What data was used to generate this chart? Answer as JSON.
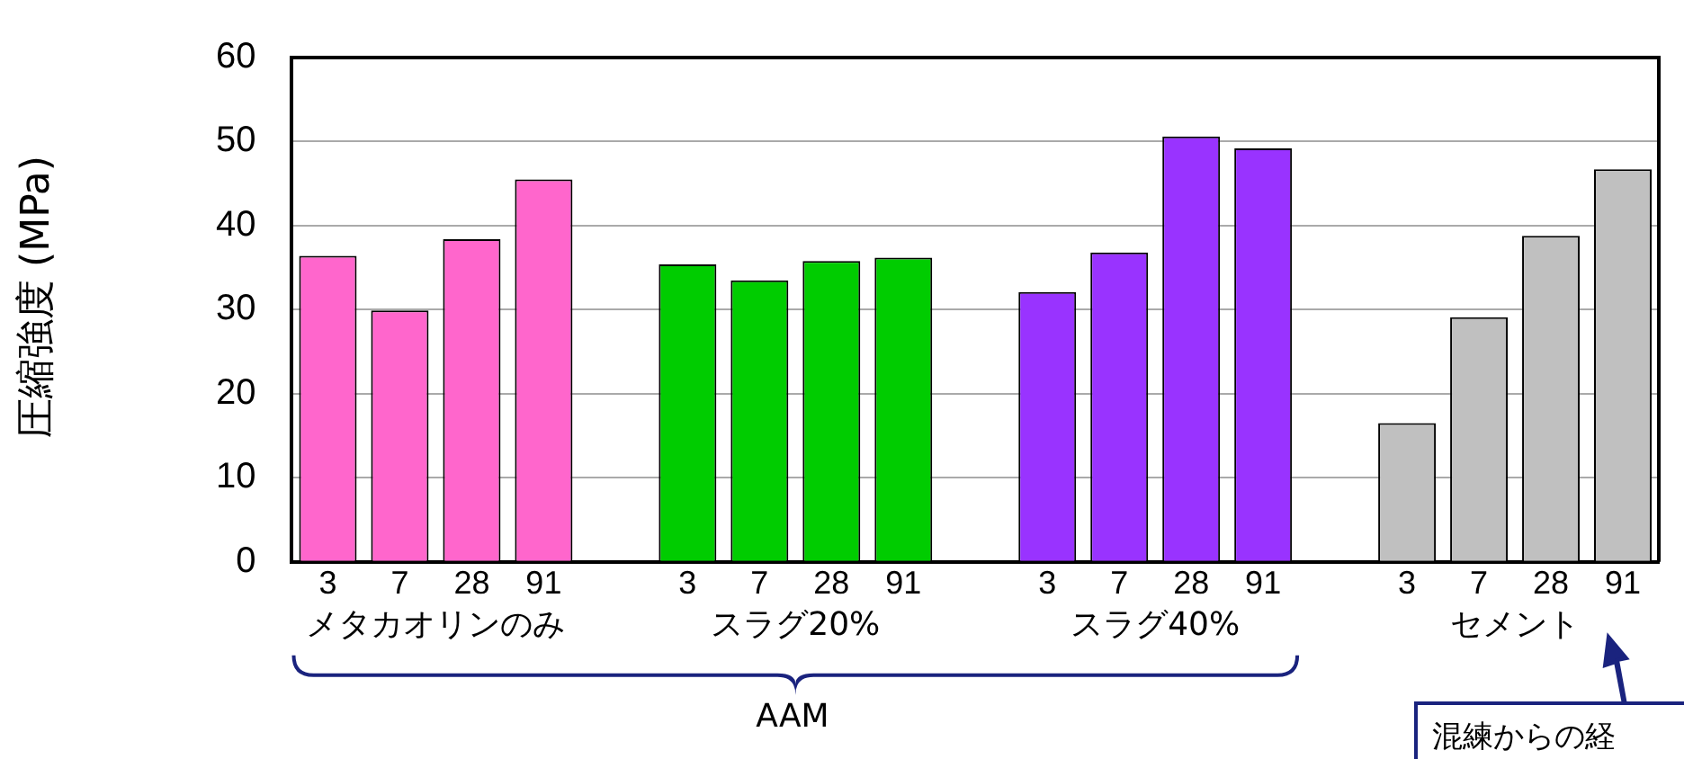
{
  "chart_data": {
    "type": "bar",
    "ylabel": "圧縮強度 (MPa)",
    "categories": [
      "3",
      "7",
      "28",
      "91",
      null,
      "3",
      "7",
      "28",
      "91",
      null,
      "3",
      "7",
      "28",
      "91",
      null,
      "3",
      "7",
      "28",
      "91"
    ],
    "series": [
      {
        "name": "メタカオリンのみ",
        "color": "#ff66cc",
        "values": [
          36.4,
          29.9,
          38.4,
          45.5,
          null,
          null,
          null,
          null,
          null,
          null,
          null,
          null,
          null,
          null,
          null,
          null,
          null,
          null,
          null
        ]
      },
      {
        "name": "スラグ20%",
        "color": "#00cc00",
        "values": [
          null,
          null,
          null,
          null,
          null,
          35.4,
          33.5,
          35.8,
          36.2,
          null,
          null,
          null,
          null,
          null,
          null,
          null,
          null,
          null,
          null
        ]
      },
      {
        "name": "スラグ40%",
        "color": "#9933ff",
        "values": [
          null,
          null,
          null,
          null,
          null,
          null,
          null,
          null,
          null,
          null,
          32.1,
          36.8,
          50.6,
          49.2,
          null,
          null,
          null,
          null,
          null
        ]
      },
      {
        "name": "セメント",
        "color": "#c0c0c0",
        "values": [
          null,
          null,
          null,
          null,
          null,
          null,
          null,
          null,
          null,
          null,
          null,
          null,
          null,
          null,
          null,
          16.5,
          29.1,
          38.8,
          46.7
        ]
      }
    ],
    "ylim": [
      0,
      60
    ],
    "yticks": [
      0,
      10,
      20,
      30,
      40,
      50,
      60
    ],
    "grid": "y",
    "legend": false,
    "annotations": [
      "AAM",
      "混練からの経"
    ]
  }
}
